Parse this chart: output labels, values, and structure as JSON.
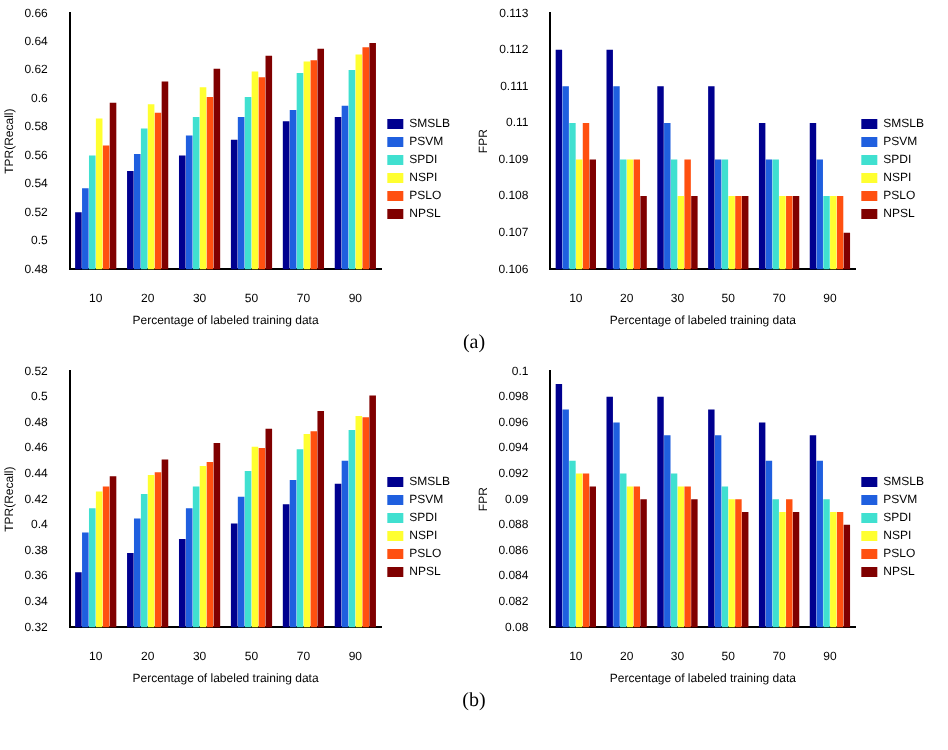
{
  "chart_data": [
    {
      "type": "bar",
      "xlabel": "Percentage of labeled training data",
      "ylabel": "TPR(Recall)",
      "categories": [
        "10",
        "20",
        "30",
        "50",
        "70",
        "90"
      ],
      "ylim": [
        0.48,
        0.66
      ],
      "yticks": [
        0.48,
        0.5,
        0.52,
        0.54,
        0.56,
        0.58,
        0.6,
        0.62,
        0.64,
        0.66
      ],
      "legend": "right",
      "series": [
        {
          "name": "SMSLB",
          "color": "#00008f",
          "values": [
            0.52,
            0.549,
            0.56,
            0.571,
            0.584,
            0.587
          ]
        },
        {
          "name": "PSVM",
          "color": "#1f5fdf",
          "values": [
            0.537,
            0.561,
            0.574,
            0.587,
            0.592,
            0.595
          ]
        },
        {
          "name": "SPDI",
          "color": "#40e0d0",
          "values": [
            0.56,
            0.579,
            0.587,
            0.601,
            0.618,
            0.62
          ]
        },
        {
          "name": "NSPI",
          "color": "#ffff30",
          "values": [
            0.586,
            0.596,
            0.608,
            0.619,
            0.626,
            0.631
          ]
        },
        {
          "name": "PSLO",
          "color": "#ff5010",
          "values": [
            0.567,
            0.59,
            0.601,
            0.615,
            0.627,
            0.636
          ]
        },
        {
          "name": "NPSL",
          "color": "#800000",
          "values": [
            0.597,
            0.612,
            0.621,
            0.63,
            0.635,
            0.639
          ]
        }
      ]
    },
    {
      "type": "bar",
      "xlabel": "Percentage of labeled training data",
      "ylabel": "FPR",
      "categories": [
        "10",
        "20",
        "30",
        "50",
        "70",
        "90"
      ],
      "ylim": [
        0.106,
        0.113
      ],
      "yticks": [
        0.106,
        0.107,
        0.108,
        0.109,
        0.11,
        0.111,
        0.112,
        0.113
      ],
      "legend": "right",
      "annotations": [
        "(a)"
      ],
      "series": [
        {
          "name": "SMSLB",
          "color": "#00008f",
          "values": [
            0.112,
            0.112,
            0.111,
            0.111,
            0.11,
            0.11
          ]
        },
        {
          "name": "PSVM",
          "color": "#1f5fdf",
          "values": [
            0.111,
            0.111,
            0.11,
            0.109,
            0.109,
            0.109
          ]
        },
        {
          "name": "SPDI",
          "color": "#40e0d0",
          "values": [
            0.11,
            0.109,
            0.109,
            0.109,
            0.109,
            0.108
          ]
        },
        {
          "name": "NSPI",
          "color": "#ffff30",
          "values": [
            0.109,
            0.109,
            0.108,
            0.108,
            0.108,
            0.108
          ]
        },
        {
          "name": "PSLO",
          "color": "#ff5010",
          "values": [
            0.11,
            0.109,
            0.109,
            0.108,
            0.108,
            0.108
          ]
        },
        {
          "name": "NPSL",
          "color": "#800000",
          "values": [
            0.109,
            0.108,
            0.108,
            0.108,
            0.108,
            0.107
          ]
        }
      ]
    },
    {
      "type": "bar",
      "xlabel": "Percentage of labeled training data",
      "ylabel": "TPR(Recall)",
      "categories": [
        "10",
        "20",
        "30",
        "50",
        "70",
        "90"
      ],
      "ylim": [
        0.32,
        0.52
      ],
      "yticks": [
        0.32,
        0.34,
        0.36,
        0.38,
        0.4,
        0.42,
        0.44,
        0.46,
        0.48,
        0.5,
        0.52
      ],
      "legend": "right",
      "series": [
        {
          "name": "SMSLB",
          "color": "#00008f",
          "values": [
            0.363,
            0.378,
            0.389,
            0.401,
            0.416,
            0.432
          ]
        },
        {
          "name": "PSVM",
          "color": "#1f5fdf",
          "values": [
            0.394,
            0.405,
            0.413,
            0.422,
            0.435,
            0.45
          ]
        },
        {
          "name": "SPDI",
          "color": "#40e0d0",
          "values": [
            0.413,
            0.424,
            0.43,
            0.442,
            0.459,
            0.474
          ]
        },
        {
          "name": "NSPI",
          "color": "#ffff30",
          "values": [
            0.426,
            0.439,
            0.446,
            0.461,
            0.471,
            0.485
          ]
        },
        {
          "name": "PSLO",
          "color": "#ff5010",
          "values": [
            0.43,
            0.441,
            0.449,
            0.46,
            0.473,
            0.484
          ]
        },
        {
          "name": "NPSL",
          "color": "#800000",
          "values": [
            0.438,
            0.451,
            0.464,
            0.475,
            0.489,
            0.501
          ]
        }
      ]
    },
    {
      "type": "bar",
      "xlabel": "Percentage of labeled training data",
      "ylabel": "FPR",
      "categories": [
        "10",
        "20",
        "30",
        "50",
        "70",
        "90"
      ],
      "ylim": [
        0.08,
        0.1
      ],
      "yticks": [
        0.08,
        0.082,
        0.084,
        0.086,
        0.088,
        0.09,
        0.092,
        0.094,
        0.096,
        0.098,
        0.1
      ],
      "legend": "right",
      "annotations": [
        "(b)"
      ],
      "series": [
        {
          "name": "SMSLB",
          "color": "#00008f",
          "values": [
            0.099,
            0.098,
            0.098,
            0.097,
            0.096,
            0.095
          ]
        },
        {
          "name": "PSVM",
          "color": "#1f5fdf",
          "values": [
            0.097,
            0.096,
            0.095,
            0.095,
            0.093,
            0.093
          ]
        },
        {
          "name": "SPDI",
          "color": "#40e0d0",
          "values": [
            0.093,
            0.092,
            0.092,
            0.091,
            0.09,
            0.09
          ]
        },
        {
          "name": "NSPI",
          "color": "#ffff30",
          "values": [
            0.092,
            0.091,
            0.091,
            0.09,
            0.089,
            0.089
          ]
        },
        {
          "name": "PSLO",
          "color": "#ff5010",
          "values": [
            0.092,
            0.091,
            0.091,
            0.09,
            0.09,
            0.089
          ]
        },
        {
          "name": "NPSL",
          "color": "#800000",
          "values": [
            0.091,
            0.09,
            0.09,
            0.089,
            0.089,
            0.088
          ]
        }
      ]
    }
  ]
}
